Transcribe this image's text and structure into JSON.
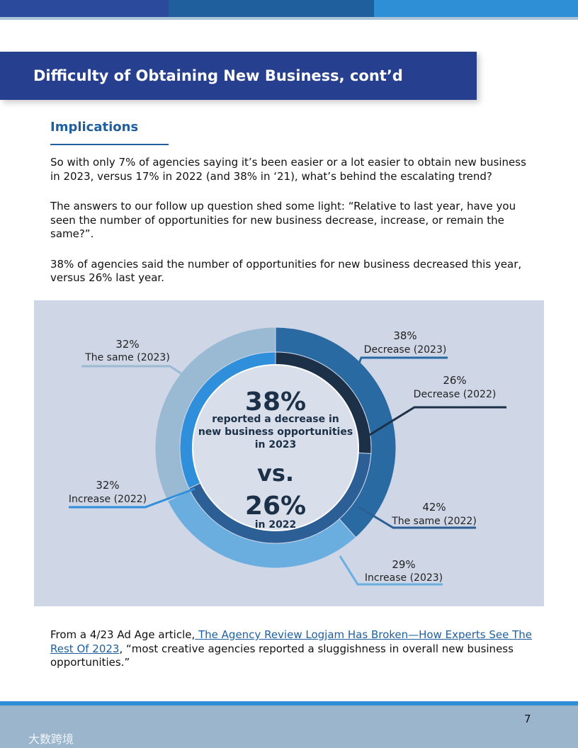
{
  "header": {
    "title": "Difficulty of Obtaining New Business, cont’d"
  },
  "section": {
    "heading": "Implications",
    "paragraphs": [
      "So with only 7% of agencies saying it’s been easier or a lot easier to obtain new business in 2023, versus 17% in 2022 (and 38% in ‘21), what’s behind the escalating trend?",
      "The answers to our follow up question shed some light: “Relative to last year, have you seen the number of opportunities for new business decrease, increase, or remain the same?”.",
      "38% of agencies said the number of opportunities for new business decreased this year, versus 26% last year."
    ]
  },
  "chart_data": {
    "type": "donut",
    "rings": [
      {
        "labels": [
          "Decrease (2023)",
          "Increase (2023)",
          "The same (2023)"
        ],
        "values": [
          38,
          29,
          32
        ],
        "value_labels": [
          "38%",
          "29%",
          "32%"
        ],
        "colors": [
          "#2a6aa3",
          "#6aaee0",
          "#9ab9d3"
        ]
      },
      {
        "labels": [
          "Decrease (2022)",
          "The same (2022)",
          "Increase (2022)"
        ],
        "values": [
          26,
          42,
          32
        ],
        "value_labels": [
          "26%",
          "42%",
          "32%"
        ],
        "colors": [
          "#1c3048",
          "#2b5f95",
          "#2f8fdb"
        ]
      }
    ],
    "annotations": [
      "38%",
      "reported a decrease in",
      "new business opportunities",
      "in 2023",
      "vs.",
      "26%",
      "in 2022"
    ]
  },
  "footer": {
    "lead": "From a 4/23 Ad Age article,",
    "link": " The Agency Review Logjam Has Broken—How Experts See The Rest Of 2023",
    "tail": ", “most creative agencies reported a sluggishness in overall new business opportunities.”",
    "page": "7",
    "watermark": "大数跨境"
  }
}
